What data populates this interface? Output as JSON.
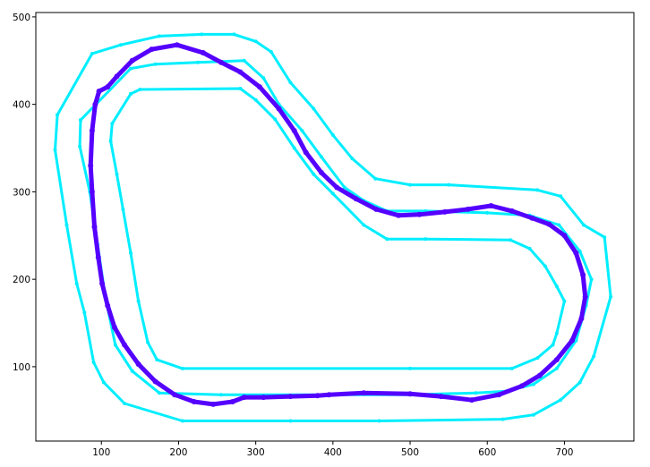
{
  "chart_data": {
    "type": "line",
    "title": "",
    "xlabel": "",
    "ylabel": "",
    "xlim": [
      15,
      790
    ],
    "ylim": [
      15,
      505
    ],
    "x_ticks": [
      100,
      200,
      300,
      400,
      500,
      600,
      700
    ],
    "y_ticks": [
      100,
      200,
      300,
      400,
      500
    ],
    "grid": false,
    "series": [
      {
        "role": "outer-boundary",
        "color": "#00eeff",
        "marker": "dot",
        "points": [
          [
            43,
            388
          ],
          [
            40,
            348
          ],
          [
            55,
            262
          ],
          [
            68,
            195
          ],
          [
            78,
            162
          ],
          [
            90,
            105
          ],
          [
            103,
            82
          ],
          [
            130,
            58
          ],
          [
            205,
            38
          ],
          [
            345,
            38
          ],
          [
            460,
            38
          ],
          [
            620,
            40
          ],
          [
            660,
            45
          ],
          [
            695,
            62
          ],
          [
            720,
            82
          ],
          [
            738,
            112
          ],
          [
            760,
            180
          ],
          [
            752,
            248
          ],
          [
            725,
            262
          ],
          [
            695,
            295
          ],
          [
            665,
            302
          ],
          [
            550,
            308
          ],
          [
            500,
            308
          ],
          [
            455,
            315
          ],
          [
            425,
            338
          ],
          [
            400,
            365
          ],
          [
            375,
            395
          ],
          [
            345,
            425
          ],
          [
            320,
            460
          ],
          [
            300,
            472
          ],
          [
            272,
            480
          ],
          [
            230,
            480
          ],
          [
            175,
            478
          ],
          [
            125,
            468
          ],
          [
            88,
            458
          ],
          [
            43,
            388
          ]
        ]
      },
      {
        "role": "middle-boundary",
        "color": "#00eeff",
        "marker": "dot",
        "points": [
          [
            73,
            382
          ],
          [
            72,
            352
          ],
          [
            85,
            300
          ],
          [
            95,
            240
          ],
          [
            105,
            180
          ],
          [
            118,
            125
          ],
          [
            140,
            95
          ],
          [
            175,
            70
          ],
          [
            255,
            68
          ],
          [
            500,
            68
          ],
          [
            585,
            70
          ],
          [
            625,
            72
          ],
          [
            660,
            80
          ],
          [
            690,
            98
          ],
          [
            715,
            130
          ],
          [
            728,
            170
          ],
          [
            735,
            200
          ],
          [
            720,
            232
          ],
          [
            693,
            262
          ],
          [
            655,
            273
          ],
          [
            600,
            276
          ],
          [
            520,
            278
          ],
          [
            470,
            278
          ],
          [
            440,
            290
          ],
          [
            415,
            305
          ],
          [
            385,
            340
          ],
          [
            360,
            370
          ],
          [
            330,
            400
          ],
          [
            310,
            430
          ],
          [
            285,
            450
          ],
          [
            225,
            448
          ],
          [
            170,
            446
          ],
          [
            138,
            441
          ],
          [
            73,
            382
          ]
        ]
      },
      {
        "role": "inner-boundary",
        "color": "#00eeff",
        "marker": "dot",
        "points": [
          [
            138,
            412
          ],
          [
            114,
            378
          ],
          [
            112,
            358
          ],
          [
            120,
            320
          ],
          [
            128,
            280
          ],
          [
            138,
            230
          ],
          [
            148,
            175
          ],
          [
            160,
            128
          ],
          [
            172,
            108
          ],
          [
            205,
            98
          ],
          [
            500,
            98
          ],
          [
            632,
            98
          ],
          [
            665,
            110
          ],
          [
            685,
            125
          ],
          [
            690,
            138
          ],
          [
            700,
            175
          ],
          [
            690,
            192
          ],
          [
            675,
            215
          ],
          [
            655,
            235
          ],
          [
            630,
            245
          ],
          [
            520,
            246
          ],
          [
            470,
            246
          ],
          [
            440,
            262
          ],
          [
            400,
            298
          ],
          [
            375,
            320
          ],
          [
            350,
            350
          ],
          [
            325,
            383
          ],
          [
            300,
            405
          ],
          [
            280,
            418
          ],
          [
            150,
            417
          ],
          [
            138,
            412
          ]
        ]
      },
      {
        "role": "driven-path",
        "color": "#5500ff",
        "marker": "dot",
        "points": [
          [
            97,
            415
          ],
          [
            92,
            400
          ],
          [
            88,
            370
          ],
          [
            86,
            330
          ],
          [
            88,
            300
          ],
          [
            91,
            260
          ],
          [
            96,
            225
          ],
          [
            101,
            195
          ],
          [
            108,
            170
          ],
          [
            117,
            145
          ],
          [
            130,
            125
          ],
          [
            148,
            103
          ],
          [
            170,
            83
          ],
          [
            195,
            68
          ],
          [
            220,
            60
          ],
          [
            245,
            57
          ],
          [
            270,
            60
          ],
          [
            285,
            65
          ],
          [
            310,
            65
          ],
          [
            345,
            66
          ],
          [
            380,
            67
          ],
          [
            395,
            68
          ],
          [
            440,
            70
          ],
          [
            500,
            69
          ],
          [
            540,
            66
          ],
          [
            580,
            62
          ],
          [
            615,
            68
          ],
          [
            645,
            78
          ],
          [
            668,
            90
          ],
          [
            690,
            108
          ],
          [
            710,
            130
          ],
          [
            722,
            155
          ],
          [
            727,
            180
          ],
          [
            724,
            205
          ],
          [
            715,
            230
          ],
          [
            700,
            250
          ],
          [
            680,
            263
          ],
          [
            658,
            270
          ],
          [
            632,
            278
          ],
          [
            605,
            284
          ],
          [
            575,
            280
          ],
          [
            545,
            277
          ],
          [
            512,
            274
          ],
          [
            485,
            273
          ],
          [
            456,
            280
          ],
          [
            430,
            292
          ],
          [
            405,
            305
          ],
          [
            385,
            322
          ],
          [
            365,
            345
          ],
          [
            350,
            370
          ],
          [
            330,
            395
          ],
          [
            305,
            420
          ],
          [
            280,
            437
          ],
          [
            255,
            448
          ],
          [
            232,
            459
          ],
          [
            198,
            468
          ],
          [
            165,
            463
          ],
          [
            140,
            450
          ],
          [
            120,
            432
          ],
          [
            108,
            420
          ],
          [
            97,
            415
          ]
        ]
      }
    ]
  }
}
